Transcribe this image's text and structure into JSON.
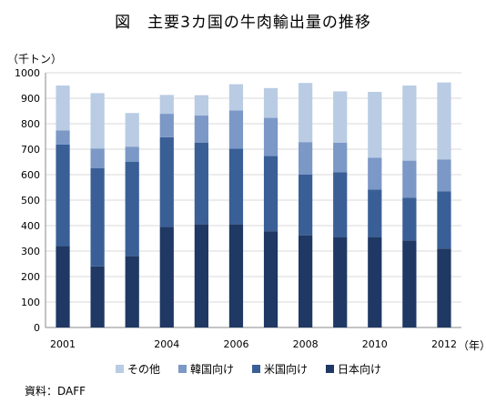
{
  "chart_data": {
    "type": "bar",
    "stacked": true,
    "title": "図　主要3カ国の牛肉輸出量の推移",
    "ylabel": "（千トン）",
    "xunit": "（年）",
    "ylim": [
      0,
      1000
    ],
    "yticks": [
      0,
      100,
      200,
      300,
      400,
      500,
      600,
      700,
      800,
      900,
      1000
    ],
    "grid": true,
    "legend_position": "bottom",
    "categories": [
      "2001",
      "2002",
      "2003",
      "2004",
      "2005",
      "2006",
      "2007",
      "2008",
      "2009",
      "2010",
      "2011",
      "2012"
    ],
    "tick_labels": [
      "2001",
      "",
      "",
      "2004",
      "",
      "2006",
      "",
      "2008",
      "",
      "2010",
      "",
      "2012"
    ],
    "series": [
      {
        "name": "日本向け",
        "color": "#1f3864",
        "values": [
          320,
          240,
          280,
          395,
          405,
          405,
          378,
          362,
          355,
          355,
          342,
          310
        ]
      },
      {
        "name": "米国向け",
        "color": "#3a5f97",
        "values": [
          398,
          385,
          370,
          352,
          320,
          297,
          295,
          238,
          255,
          187,
          168,
          225
        ]
      },
      {
        "name": "韓国向け",
        "color": "#7b98c6",
        "values": [
          56,
          78,
          60,
          92,
          107,
          150,
          150,
          128,
          115,
          125,
          145,
          125
        ]
      },
      {
        "name": "その他",
        "color": "#b9cce4",
        "values": [
          176,
          217,
          132,
          74,
          80,
          103,
          117,
          232,
          202,
          258,
          295,
          302
        ]
      }
    ],
    "source": "資料：DAFF"
  }
}
